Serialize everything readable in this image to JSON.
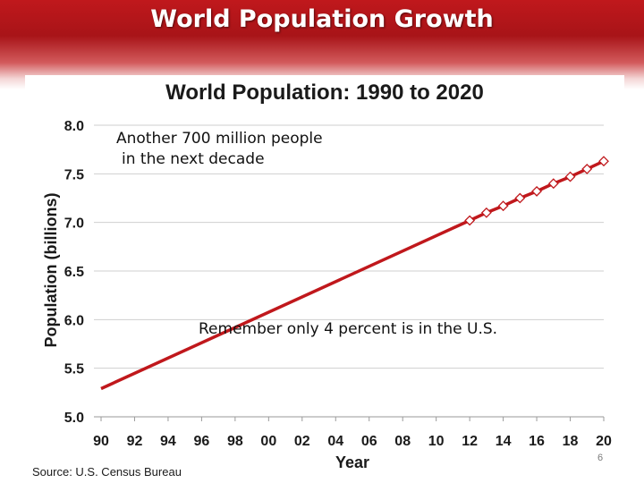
{
  "slide": {
    "title": "World Population Growth",
    "page_number": "6"
  },
  "annotations": {
    "line1": "Another 700 million people",
    "line2": "in the next decade",
    "us_note": "Remember only 4 percent is in the U.S."
  },
  "source": "Source: U.S. Census Bureau",
  "colors": {
    "banner": "#b4161a",
    "series": "#c0181c",
    "gridline": "#cfcfcf"
  },
  "chart_data": {
    "type": "line",
    "title": "World Population: 1990 to 2020",
    "xlabel": "Year",
    "ylabel": "Population (billions)",
    "xlim": [
      1990,
      2020
    ],
    "ylim": [
      5.0,
      8.0
    ],
    "x_ticks": [
      "90",
      "92",
      "94",
      "96",
      "98",
      "00",
      "02",
      "04",
      "06",
      "08",
      "10",
      "12",
      "14",
      "16",
      "18",
      "20"
    ],
    "y_ticks": [
      "5.0",
      "5.5",
      "6.0",
      "6.5",
      "7.0",
      "7.5",
      "8.0"
    ],
    "grid": "horizontal",
    "series": [
      {
        "segment": "estimated",
        "marker": "none",
        "x": [
          1990,
          2012
        ],
        "y": [
          5.29,
          7.02
        ]
      },
      {
        "segment": "projected",
        "marker": "open-diamond",
        "x": [
          2012,
          2013,
          2014,
          2015,
          2016,
          2017,
          2018,
          2019,
          2020
        ],
        "y": [
          7.02,
          7.1,
          7.17,
          7.25,
          7.32,
          7.4,
          7.47,
          7.55,
          7.63
        ]
      }
    ]
  }
}
